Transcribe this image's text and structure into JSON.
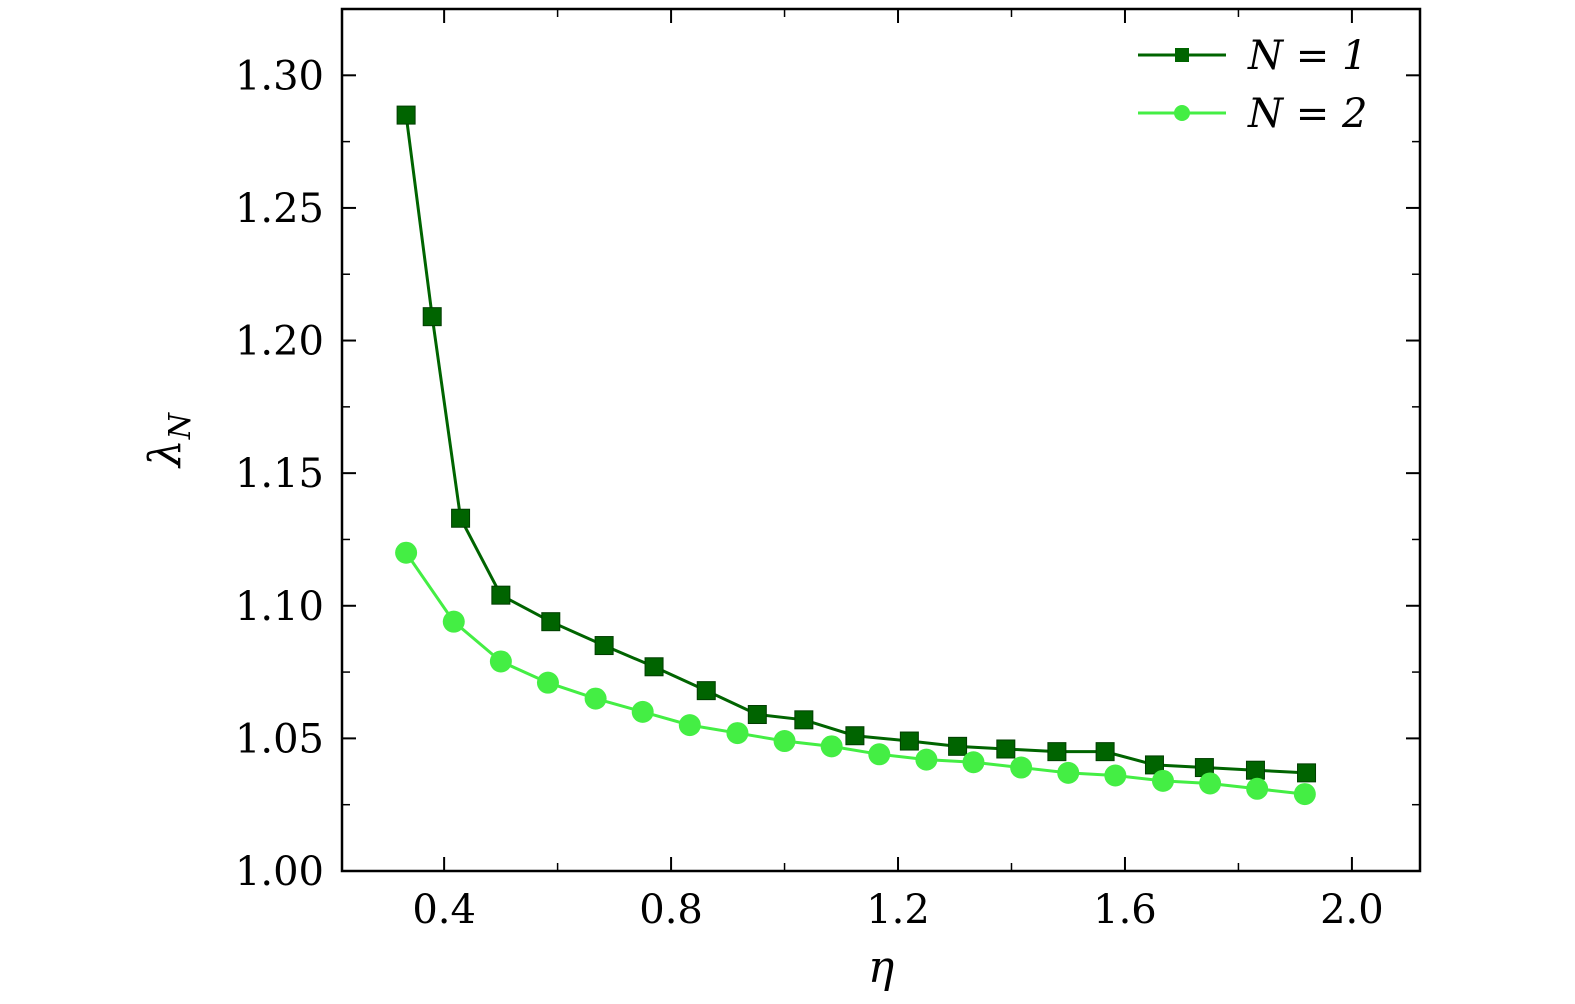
{
  "chart_data": {
    "type": "line",
    "title": "",
    "xlabel": "η",
    "ylabel": "λN",
    "xlim": [
      0.22,
      2.12
    ],
    "ylim": [
      1.0,
      1.325
    ],
    "xticks": [
      0.4,
      0.8,
      1.2,
      1.6,
      2.0
    ],
    "xtick_labels": [
      "0.4",
      "0.8",
      "1.2",
      "1.6",
      "2.0"
    ],
    "yticks": [
      1.0,
      1.05,
      1.1,
      1.15,
      1.2,
      1.25,
      1.3
    ],
    "ytick_labels": [
      "1.00",
      "1.05",
      "1.10",
      "1.15",
      "1.20",
      "1.25",
      "1.30"
    ],
    "grid": false,
    "legend_position": "top-right",
    "series": [
      {
        "name": "N = 1",
        "marker": "square",
        "color": "#006400",
        "x": [
          0.333,
          0.379,
          0.429,
          0.5,
          0.588,
          0.682,
          0.77,
          0.862,
          0.952,
          1.034,
          1.124,
          1.22,
          1.305,
          1.39,
          1.48,
          1.565,
          1.652,
          1.74,
          1.83,
          1.92
        ],
        "y": [
          1.285,
          1.209,
          1.133,
          1.104,
          1.094,
          1.085,
          1.077,
          1.068,
          1.059,
          1.057,
          1.051,
          1.049,
          1.047,
          1.046,
          1.045,
          1.045,
          1.04,
          1.039,
          1.038,
          1.037
        ]
      },
      {
        "name": "N = 2",
        "marker": "circle",
        "color": "#44ee44",
        "x": [
          0.333,
          0.417,
          0.5,
          0.583,
          0.667,
          0.75,
          0.833,
          0.917,
          1.0,
          1.083,
          1.167,
          1.25,
          1.333,
          1.417,
          1.5,
          1.583,
          1.667,
          1.75,
          1.833,
          1.917
        ],
        "y": [
          1.12,
          1.094,
          1.079,
          1.071,
          1.065,
          1.06,
          1.055,
          1.052,
          1.049,
          1.047,
          1.044,
          1.042,
          1.041,
          1.039,
          1.037,
          1.036,
          1.034,
          1.033,
          1.031,
          1.029
        ]
      }
    ]
  }
}
